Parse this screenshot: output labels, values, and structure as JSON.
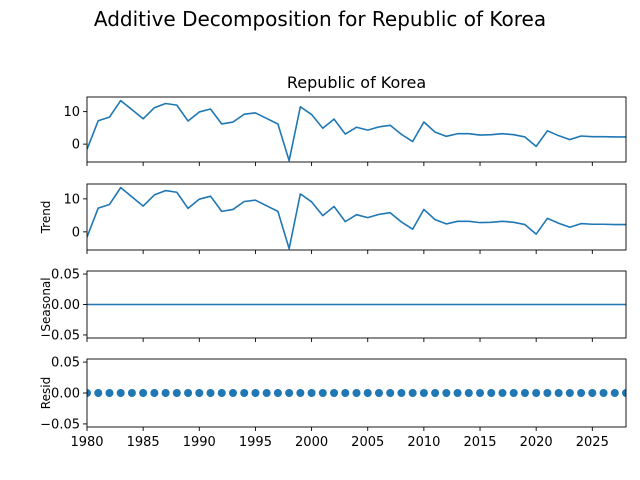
{
  "chart_data": {
    "type": "line",
    "suptitle": "Additive Decomposition for Republic of Korea",
    "colors": {
      "line": "#1f77b4",
      "marker": "#1f77b4",
      "axes": "#000000"
    },
    "xlim": [
      1980,
      2028
    ],
    "xticks": [
      1980,
      1985,
      1990,
      1995,
      2000,
      2005,
      2010,
      2015,
      2020,
      2025
    ],
    "x": [
      1980,
      1981,
      1982,
      1983,
      1984,
      1985,
      1986,
      1987,
      1988,
      1989,
      1990,
      1991,
      1992,
      1993,
      1994,
      1995,
      1996,
      1997,
      1998,
      1999,
      2000,
      2001,
      2002,
      2003,
      2004,
      2005,
      2006,
      2007,
      2008,
      2009,
      2010,
      2011,
      2012,
      2013,
      2014,
      2015,
      2016,
      2017,
      2018,
      2019,
      2020,
      2021,
      2022,
      2023,
      2024,
      2025,
      2026,
      2027,
      2028
    ],
    "panels": [
      {
        "name": "observed",
        "title": "Republic of Korea",
        "ylabel": "",
        "ylim": [
          -5.5,
          14.5
        ],
        "yticks": [
          0,
          10
        ],
        "ytick_labels": [
          "0",
          "10"
        ],
        "style": "line",
        "values": [
          -1.6,
          7.2,
          8.3,
          13.4,
          10.6,
          7.8,
          11.2,
          12.5,
          12.0,
          7.1,
          9.9,
          10.8,
          6.2,
          6.8,
          9.2,
          9.6,
          7.9,
          6.2,
          -5.1,
          11.5,
          9.1,
          4.9,
          7.7,
          3.1,
          5.2,
          4.3,
          5.3,
          5.8,
          3.0,
          0.8,
          6.8,
          3.7,
          2.4,
          3.2,
          3.2,
          2.8,
          2.9,
          3.2,
          2.9,
          2.2,
          -0.7,
          4.1,
          2.6,
          1.4,
          2.5,
          2.3,
          2.3,
          2.2,
          2.2
        ]
      },
      {
        "name": "trend",
        "title": "",
        "ylabel": "Trend",
        "ylim": [
          -5.5,
          14.5
        ],
        "yticks": [
          0,
          10
        ],
        "ytick_labels": [
          "0",
          "10"
        ],
        "style": "line",
        "values": [
          -1.6,
          7.2,
          8.3,
          13.4,
          10.6,
          7.8,
          11.2,
          12.5,
          12.0,
          7.1,
          9.9,
          10.8,
          6.2,
          6.8,
          9.2,
          9.6,
          7.9,
          6.2,
          -5.1,
          11.5,
          9.1,
          4.9,
          7.7,
          3.1,
          5.2,
          4.3,
          5.3,
          5.8,
          3.0,
          0.8,
          6.8,
          3.7,
          2.4,
          3.2,
          3.2,
          2.8,
          2.9,
          3.2,
          2.9,
          2.2,
          -0.7,
          4.1,
          2.6,
          1.4,
          2.5,
          2.3,
          2.3,
          2.2,
          2.2
        ]
      },
      {
        "name": "seasonal",
        "title": "",
        "ylabel": "Seasonal",
        "ylim": [
          -0.055,
          0.055
        ],
        "yticks": [
          -0.05,
          0.0,
          0.05
        ],
        "ytick_labels": [
          "−0.05",
          "0.00",
          "0.05"
        ],
        "style": "line",
        "values": [
          0,
          0,
          0,
          0,
          0,
          0,
          0,
          0,
          0,
          0,
          0,
          0,
          0,
          0,
          0,
          0,
          0,
          0,
          0,
          0,
          0,
          0,
          0,
          0,
          0,
          0,
          0,
          0,
          0,
          0,
          0,
          0,
          0,
          0,
          0,
          0,
          0,
          0,
          0,
          0,
          0,
          0,
          0,
          0,
          0,
          0,
          0,
          0,
          0
        ]
      },
      {
        "name": "resid",
        "title": "",
        "ylabel": "Resid",
        "ylim": [
          -0.055,
          0.055
        ],
        "yticks": [
          -0.05,
          0.0,
          0.05
        ],
        "ytick_labels": [
          "−0.05",
          "0.00",
          "0.05"
        ],
        "style": "markers",
        "values": [
          0,
          0,
          0,
          0,
          0,
          0,
          0,
          0,
          0,
          0,
          0,
          0,
          0,
          0,
          0,
          0,
          0,
          0,
          0,
          0,
          0,
          0,
          0,
          0,
          0,
          0,
          0,
          0,
          0,
          0,
          0,
          0,
          0,
          0,
          0,
          0,
          0,
          0,
          0,
          0,
          0,
          0,
          0,
          0,
          0,
          0,
          0,
          0,
          0
        ]
      }
    ]
  }
}
